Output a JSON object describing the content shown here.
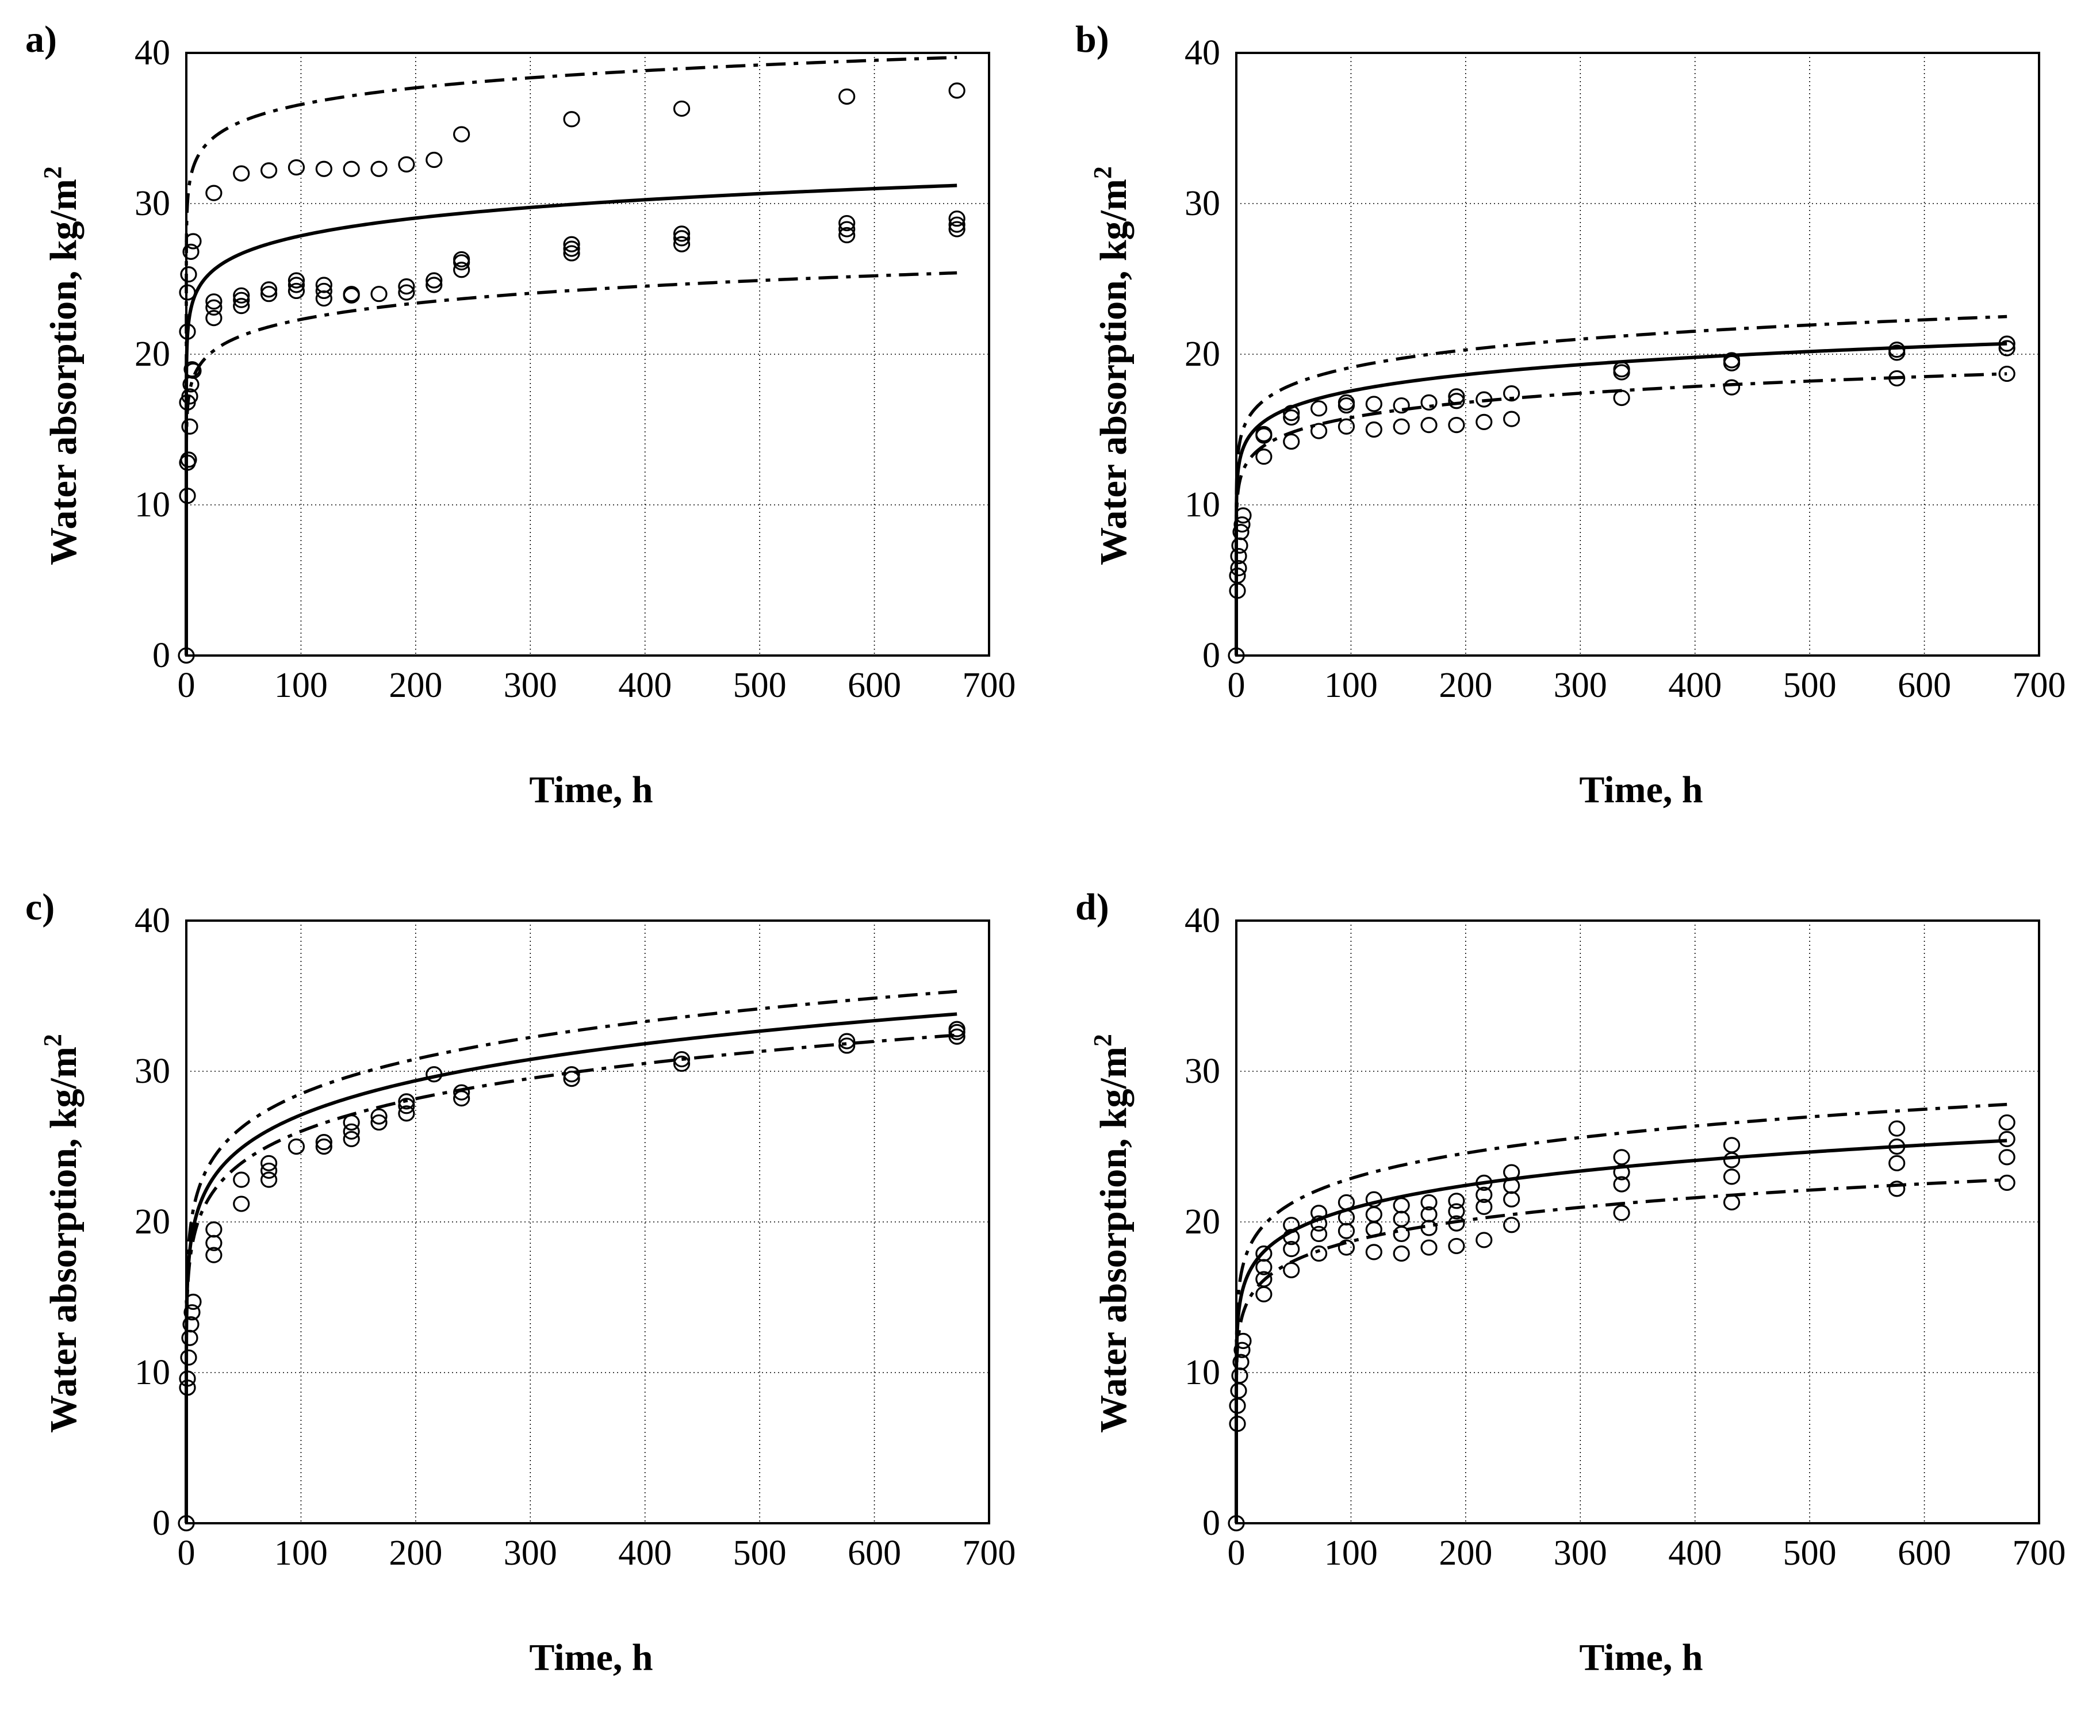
{
  "figure": {
    "panels": [
      {
        "letter": "a)",
        "ylabel": "Water absorption, kg/m",
        "ylabel_sup": "2",
        "xlabel": "Time, h"
      },
      {
        "letter": "b)",
        "ylabel": "Water absorption, kg/m",
        "ylabel_sup": "2",
        "xlabel": "Time, h"
      },
      {
        "letter": "c)",
        "ylabel": "Water absorption, kg/m",
        "ylabel_sup": "2",
        "xlabel": "Time, h"
      },
      {
        "letter": "d)",
        "ylabel": "Water absorption, kg/m",
        "ylabel_sup": "2",
        "xlabel": "Time, h"
      }
    ]
  },
  "chart_data": [
    {
      "panel": "a)",
      "type": "scatter",
      "xlabel": "Time, h",
      "ylabel": "Water absorption, kg/m2",
      "xlim": [
        0,
        700
      ],
      "ylim": [
        0,
        40
      ],
      "xticks": [
        0,
        100,
        200,
        300,
        400,
        500,
        600,
        700
      ],
      "yticks": [
        0,
        10,
        20,
        30,
        40
      ],
      "grid": true,
      "measured": [
        [
          0,
          0
        ],
        [
          1,
          10.6
        ],
        [
          1,
          12.8
        ],
        [
          1,
          16.8
        ],
        [
          1,
          21.5
        ],
        [
          1,
          24.1
        ],
        [
          2,
          13.0
        ],
        [
          2,
          25.3
        ],
        [
          3,
          15.2
        ],
        [
          3,
          17.2
        ],
        [
          4,
          18.0
        ],
        [
          4,
          26.8
        ],
        [
          5,
          19.0
        ],
        [
          6,
          18.9
        ],
        [
          6,
          27.5
        ],
        [
          24,
          22.4
        ],
        [
          24,
          23.1
        ],
        [
          24,
          23.5
        ],
        [
          24,
          30.7
        ],
        [
          48,
          23.2
        ],
        [
          48,
          23.6
        ],
        [
          48,
          23.9
        ],
        [
          48,
          32.0
        ],
        [
          72,
          24.0
        ],
        [
          72,
          24.3
        ],
        [
          72,
          32.2
        ],
        [
          96,
          24.2
        ],
        [
          96,
          24.6
        ],
        [
          96,
          24.9
        ],
        [
          96,
          32.4
        ],
        [
          120,
          23.7
        ],
        [
          120,
          24.2
        ],
        [
          120,
          24.6
        ],
        [
          120,
          32.3
        ],
        [
          144,
          23.9
        ],
        [
          144,
          24.0
        ],
        [
          144,
          32.3
        ],
        [
          168,
          24.0
        ],
        [
          168,
          32.3
        ],
        [
          192,
          24.1
        ],
        [
          192,
          24.5
        ],
        [
          192,
          32.6
        ],
        [
          216,
          24.6
        ],
        [
          216,
          24.9
        ],
        [
          216,
          32.9
        ],
        [
          240,
          25.6
        ],
        [
          240,
          26.1
        ],
        [
          240,
          26.3
        ],
        [
          240,
          34.6
        ],
        [
          336,
          26.7
        ],
        [
          336,
          27.0
        ],
        [
          336,
          27.3
        ],
        [
          336,
          35.6
        ],
        [
          432,
          27.3
        ],
        [
          432,
          27.7
        ],
        [
          432,
          28.0
        ],
        [
          432,
          36.3
        ],
        [
          576,
          27.9
        ],
        [
          576,
          28.3
        ],
        [
          576,
          28.7
        ],
        [
          576,
          37.1
        ],
        [
          672,
          28.3
        ],
        [
          672,
          28.6
        ],
        [
          672,
          29.0
        ],
        [
          672,
          37.5
        ]
      ],
      "fit": {
        "mean": [
          0,
          21.2,
          31.2
        ],
        "upper": [
          0,
          30.0,
          39.7
        ],
        "lower": [
          0,
          16.3,
          25.4
        ]
      }
    },
    {
      "panel": "b)",
      "type": "scatter",
      "xlabel": "Time, h",
      "ylabel": "Water absorption, kg/m2",
      "xlim": [
        0,
        700
      ],
      "ylim": [
        0,
        40
      ],
      "xticks": [
        0,
        100,
        200,
        300,
        400,
        500,
        600,
        700
      ],
      "yticks": [
        0,
        10,
        20,
        30,
        40
      ],
      "grid": true,
      "measured": [
        [
          0,
          0
        ],
        [
          1,
          4.3
        ],
        [
          1,
          5.3
        ],
        [
          2,
          5.8
        ],
        [
          2,
          6.6
        ],
        [
          3,
          7.3
        ],
        [
          4,
          8.2
        ],
        [
          5,
          8.7
        ],
        [
          6,
          9.3
        ],
        [
          24,
          13.2
        ],
        [
          24,
          14.6
        ],
        [
          24,
          14.7
        ],
        [
          48,
          14.2
        ],
        [
          48,
          15.8
        ],
        [
          48,
          16.1
        ],
        [
          72,
          14.9
        ],
        [
          72,
          16.4
        ],
        [
          96,
          15.2
        ],
        [
          96,
          16.6
        ],
        [
          96,
          16.8
        ],
        [
          120,
          15.0
        ],
        [
          120,
          16.7
        ],
        [
          144,
          15.2
        ],
        [
          144,
          16.6
        ],
        [
          168,
          15.3
        ],
        [
          168,
          16.8
        ],
        [
          192,
          15.3
        ],
        [
          192,
          16.9
        ],
        [
          192,
          17.2
        ],
        [
          216,
          15.5
        ],
        [
          216,
          17.0
        ],
        [
          240,
          15.7
        ],
        [
          240,
          17.4
        ],
        [
          336,
          17.1
        ],
        [
          336,
          18.8
        ],
        [
          336,
          19.0
        ],
        [
          432,
          17.8
        ],
        [
          432,
          19.4
        ],
        [
          432,
          19.6
        ],
        [
          576,
          18.4
        ],
        [
          576,
          20.1
        ],
        [
          576,
          20.3
        ],
        [
          672,
          18.7
        ],
        [
          672,
          20.4
        ],
        [
          672,
          20.7
        ]
      ],
      "fit": {
        "mean": [
          0,
          11.8,
          20.7
        ],
        "upper": [
          0,
          12.9,
          22.5
        ],
        "lower": [
          0,
          10.5,
          18.7
        ]
      }
    },
    {
      "panel": "c)",
      "type": "scatter",
      "xlabel": "Time, h",
      "ylabel": "Water absorption, kg/m2",
      "xlim": [
        0,
        700
      ],
      "ylim": [
        0,
        40
      ],
      "xticks": [
        0,
        100,
        200,
        300,
        400,
        500,
        600,
        700
      ],
      "yticks": [
        0,
        10,
        20,
        30,
        40
      ],
      "grid": true,
      "measured": [
        [
          0,
          0
        ],
        [
          1,
          9.0
        ],
        [
          1,
          9.6
        ],
        [
          2,
          11.0
        ],
        [
          3,
          12.3
        ],
        [
          4,
          13.2
        ],
        [
          5,
          14.0
        ],
        [
          6,
          14.7
        ],
        [
          24,
          17.8
        ],
        [
          24,
          18.6
        ],
        [
          24,
          19.5
        ],
        [
          48,
          21.2
        ],
        [
          48,
          22.8
        ],
        [
          72,
          22.8
        ],
        [
          72,
          23.4
        ],
        [
          72,
          23.9
        ],
        [
          96,
          25.0
        ],
        [
          120,
          25.0
        ],
        [
          120,
          25.3
        ],
        [
          144,
          25.5
        ],
        [
          144,
          26.0
        ],
        [
          144,
          26.6
        ],
        [
          168,
          26.6
        ],
        [
          168,
          27.0
        ],
        [
          192,
          27.2
        ],
        [
          192,
          27.7
        ],
        [
          192,
          28.0
        ],
        [
          216,
          29.8
        ],
        [
          240,
          28.2
        ],
        [
          240,
          28.6
        ],
        [
          336,
          29.5
        ],
        [
          336,
          29.8
        ],
        [
          432,
          30.5
        ],
        [
          432,
          30.8
        ],
        [
          576,
          31.7
        ],
        [
          576,
          32.0
        ],
        [
          672,
          32.3
        ],
        [
          672,
          32.6
        ],
        [
          672,
          32.8
        ]
      ],
      "fit": {
        "mean": [
          0,
          15.9,
          33.8
        ],
        "upper": [
          0,
          17.0,
          35.3
        ],
        "lower": [
          0,
          15.3,
          32.4
        ]
      }
    },
    {
      "panel": "d)",
      "type": "scatter",
      "xlabel": "Time, h",
      "ylabel": "Water absorption, kg/m2",
      "xlim": [
        0,
        700
      ],
      "ylim": [
        0,
        40
      ],
      "xticks": [
        0,
        100,
        200,
        300,
        400,
        500,
        600,
        700
      ],
      "yticks": [
        0,
        10,
        20,
        30,
        40
      ],
      "grid": true,
      "measured": [
        [
          0,
          0
        ],
        [
          1,
          6.6
        ],
        [
          1,
          7.8
        ],
        [
          2,
          8.8
        ],
        [
          3,
          9.8
        ],
        [
          4,
          10.7
        ],
        [
          5,
          11.5
        ],
        [
          6,
          12.1
        ],
        [
          24,
          15.2
        ],
        [
          24,
          16.2
        ],
        [
          24,
          17.0
        ],
        [
          24,
          17.9
        ],
        [
          48,
          16.8
        ],
        [
          48,
          18.2
        ],
        [
          48,
          19.0
        ],
        [
          48,
          19.8
        ],
        [
          72,
          17.9
        ],
        [
          72,
          19.2
        ],
        [
          72,
          19.9
        ],
        [
          72,
          20.6
        ],
        [
          96,
          18.3
        ],
        [
          96,
          19.4
        ],
        [
          96,
          20.3
        ],
        [
          96,
          21.3
        ],
        [
          120,
          18.0
        ],
        [
          120,
          19.5
        ],
        [
          120,
          20.5
        ],
        [
          120,
          21.5
        ],
        [
          144,
          17.9
        ],
        [
          144,
          19.2
        ],
        [
          144,
          20.2
        ],
        [
          144,
          21.1
        ],
        [
          168,
          18.3
        ],
        [
          168,
          19.6
        ],
        [
          168,
          20.5
        ],
        [
          168,
          21.3
        ],
        [
          192,
          18.4
        ],
        [
          192,
          19.9
        ],
        [
          192,
          20.7
        ],
        [
          192,
          21.4
        ],
        [
          216,
          18.8
        ],
        [
          216,
          21.0
        ],
        [
          216,
          21.8
        ],
        [
          216,
          22.6
        ],
        [
          240,
          19.8
        ],
        [
          240,
          21.5
        ],
        [
          240,
          22.4
        ],
        [
          240,
          23.3
        ],
        [
          336,
          20.6
        ],
        [
          336,
          22.5
        ],
        [
          336,
          23.3
        ],
        [
          336,
          24.3
        ],
        [
          432,
          21.3
        ],
        [
          432,
          23.0
        ],
        [
          432,
          24.1
        ],
        [
          432,
          25.1
        ],
        [
          576,
          22.2
        ],
        [
          576,
          23.9
        ],
        [
          576,
          25.0
        ],
        [
          576,
          26.2
        ],
        [
          672,
          22.6
        ],
        [
          672,
          24.3
        ],
        [
          672,
          25.5
        ],
        [
          672,
          26.6
        ]
      ],
      "fit": {
        "mean": [
          0,
          13.0,
          25.4
        ],
        "upper": [
          0,
          14.3,
          27.8
        ],
        "lower": [
          0,
          11.6,
          22.8
        ]
      }
    }
  ]
}
